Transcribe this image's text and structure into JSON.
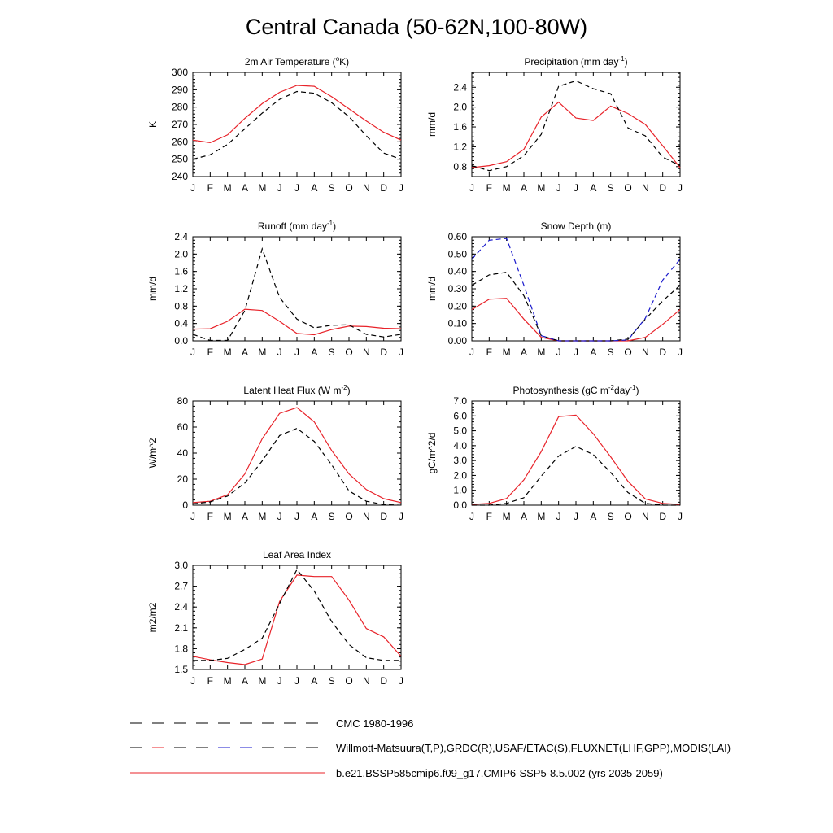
{
  "title": "Central Canada (50-62N,100-80W)",
  "months": [
    "J",
    "F",
    "M",
    "A",
    "M",
    "J",
    "J",
    "A",
    "S",
    "O",
    "N",
    "D",
    "J"
  ],
  "colors": {
    "model": "#e8232a",
    "obs_black": "#000000",
    "obs_blue": "#1a1acc"
  },
  "legend": [
    {
      "label": "CMC 1980-1996",
      "style": "dash-black"
    },
    {
      "label": "Willmott-Matsuura(T,P),GRDC(R),USAF/ETAC(S),FLUXNET(LHF,GPP),MODIS(LAI)",
      "style": "dash-black-red-blue"
    },
    {
      "label": "b.e21.BSSP585cmip6.f09_g17.CMIP6-SSP5-8.5.002 (yrs 2035-2059)",
      "style": "solid-red"
    }
  ],
  "chart_data": [
    {
      "type": "line",
      "title": "2m Air Temperature (°K)",
      "title_main": "2m Air Temperature (",
      "title_sup": "o",
      "title_tail": "K)",
      "ylabel": "K",
      "ylim": [
        240,
        300
      ],
      "yticks": [
        "240",
        "250",
        "260",
        "270",
        "280",
        "290",
        "300"
      ],
      "ytick_values": [
        240,
        250,
        260,
        270,
        280,
        290,
        300
      ],
      "series": [
        {
          "style": "solid-red",
          "values": [
            261,
            259.5,
            264,
            273.5,
            282,
            288.5,
            292.5,
            292,
            286,
            279,
            272,
            265.5,
            261
          ]
        },
        {
          "style": "dash-black",
          "values": [
            250,
            252.5,
            258.5,
            267.5,
            276.5,
            284.5,
            289,
            288,
            282.5,
            274.5,
            263.5,
            253.5,
            250
          ]
        }
      ]
    },
    {
      "type": "line",
      "title": "Precipitation (mm day-1)",
      "title_main": "Precipitation (mm day",
      "title_sup": "-1",
      "title_tail": ")",
      "ylabel": "mm/d",
      "ylim": [
        0.6,
        2.7
      ],
      "yticks": [
        "0.8",
        "1.2",
        "1.6",
        "2.0",
        "2.4"
      ],
      "ytick_values": [
        0.8,
        1.2,
        1.6,
        2.0,
        2.4
      ],
      "series": [
        {
          "style": "solid-red",
          "values": [
            0.78,
            0.82,
            0.9,
            1.15,
            1.8,
            2.1,
            1.78,
            1.73,
            2.02,
            1.87,
            1.65,
            1.22,
            0.78
          ]
        },
        {
          "style": "dash-black",
          "values": [
            0.82,
            0.72,
            0.8,
            1.02,
            1.45,
            2.42,
            2.53,
            2.37,
            2.27,
            1.58,
            1.42,
            0.99,
            0.82
          ]
        }
      ]
    },
    {
      "type": "line",
      "title": "Runoff (mm day-1)",
      "title_main": "Runoff (mm day",
      "title_sup": "-1",
      "title_tail": ")",
      "ylabel": "mm/d",
      "ylim": [
        0,
        2.4
      ],
      "yticks": [
        "0.0",
        "0.4",
        "0.8",
        "1.2",
        "1.6",
        "2.0",
        "2.4"
      ],
      "ytick_values": [
        0,
        0.4,
        0.8,
        1.2,
        1.6,
        2.0,
        2.4
      ],
      "series": [
        {
          "style": "solid-red",
          "values": [
            0.27,
            0.28,
            0.45,
            0.73,
            0.7,
            0.45,
            0.17,
            0.14,
            0.26,
            0.34,
            0.33,
            0.29,
            0.28
          ]
        },
        {
          "style": "dash-black",
          "values": [
            0.15,
            0.01,
            0.01,
            0.7,
            2.12,
            1.0,
            0.5,
            0.3,
            0.36,
            0.37,
            0.15,
            0.09,
            0.15
          ]
        }
      ]
    },
    {
      "type": "line",
      "title": "Snow Depth (m)",
      "title_main": "Snow Depth (m)",
      "title_sup": "",
      "title_tail": "",
      "ylabel": "mm/d",
      "ylim": [
        0,
        0.6
      ],
      "yticks": [
        "0.00",
        "0.10",
        "0.20",
        "0.30",
        "0.40",
        "0.50",
        "0.60"
      ],
      "ytick_values": [
        0,
        0.1,
        0.2,
        0.3,
        0.4,
        0.5,
        0.6
      ],
      "series": [
        {
          "style": "solid-red",
          "values": [
            0.18,
            0.24,
            0.245,
            0.125,
            0.02,
            0.0,
            0.0,
            0.0,
            0.0,
            0.0,
            0.02,
            0.095,
            0.18
          ]
        },
        {
          "style": "dash-black",
          "values": [
            0.32,
            0.38,
            0.395,
            0.26,
            0.03,
            0.0,
            0.0,
            0.0,
            0.0,
            0.01,
            0.125,
            0.23,
            0.32
          ]
        },
        {
          "style": "dash-blue",
          "values": [
            0.47,
            0.58,
            0.59,
            0.32,
            0.03,
            0.0,
            0.0,
            0.0,
            0.0,
            0.005,
            0.13,
            0.35,
            0.47
          ]
        }
      ]
    },
    {
      "type": "line",
      "title": "Latent Heat Flux (W m-2)",
      "title_main": "Latent Heat Flux (W m",
      "title_sup": "-2",
      "title_tail": ")",
      "ylabel": "W/m^2",
      "ylim": [
        0,
        80
      ],
      "yticks": [
        "0",
        "20",
        "40",
        "60",
        "80"
      ],
      "ytick_values": [
        0,
        20,
        40,
        60,
        80
      ],
      "series": [
        {
          "style": "solid-red",
          "values": [
            2,
            3,
            8,
            24,
            51,
            70.5,
            75,
            64,
            42,
            24,
            12,
            5,
            2
          ]
        },
        {
          "style": "dash-black",
          "values": [
            1,
            2.5,
            7,
            17,
            34,
            53.5,
            59,
            49,
            31,
            11,
            3,
            0.5,
            1
          ]
        }
      ]
    },
    {
      "type": "line",
      "title": "Photosynthesis (gC m-2day-1)",
      "title_main": "Photosynthesis (gC m",
      "title_sup": "-2",
      "title_tail": "day",
      "title_sup2": "-1",
      "title_tail2": ")",
      "ylabel": "gC/m^2/d",
      "ylim": [
        0,
        7
      ],
      "yticks": [
        "0.0",
        "1.0",
        "2.0",
        "3.0",
        "4.0",
        "5.0",
        "6.0",
        "7.0"
      ],
      "ytick_values": [
        0,
        1,
        2,
        3,
        4,
        5,
        6,
        7
      ],
      "series": [
        {
          "style": "solid-red",
          "values": [
            0.05,
            0.12,
            0.45,
            1.7,
            3.6,
            5.95,
            6.05,
            4.8,
            3.25,
            1.6,
            0.42,
            0.12,
            0.05
          ]
        },
        {
          "style": "dash-black",
          "values": [
            0,
            0,
            0.12,
            0.5,
            1.95,
            3.3,
            3.95,
            3.4,
            2.2,
            0.85,
            0.12,
            0,
            0
          ]
        }
      ]
    },
    {
      "type": "line",
      "title": "Leaf Area Index",
      "title_main": "Leaf Area Index",
      "title_sup": "",
      "title_tail": "",
      "ylabel": "m2/m2",
      "ylim": [
        1.5,
        3.0
      ],
      "yticks": [
        "1.5",
        "1.8",
        "2.1",
        "2.4",
        "2.7",
        "3.0"
      ],
      "ytick_values": [
        1.5,
        1.8,
        2.1,
        2.4,
        2.7,
        3.0
      ],
      "series": [
        {
          "style": "solid-red",
          "values": [
            1.69,
            1.64,
            1.6,
            1.57,
            1.65,
            2.48,
            2.86,
            2.84,
            2.84,
            2.5,
            2.09,
            1.97,
            1.69
          ]
        },
        {
          "style": "dash-black",
          "values": [
            1.63,
            1.63,
            1.66,
            1.79,
            1.95,
            2.45,
            2.94,
            2.63,
            2.19,
            1.86,
            1.67,
            1.63,
            1.63
          ]
        }
      ]
    }
  ]
}
